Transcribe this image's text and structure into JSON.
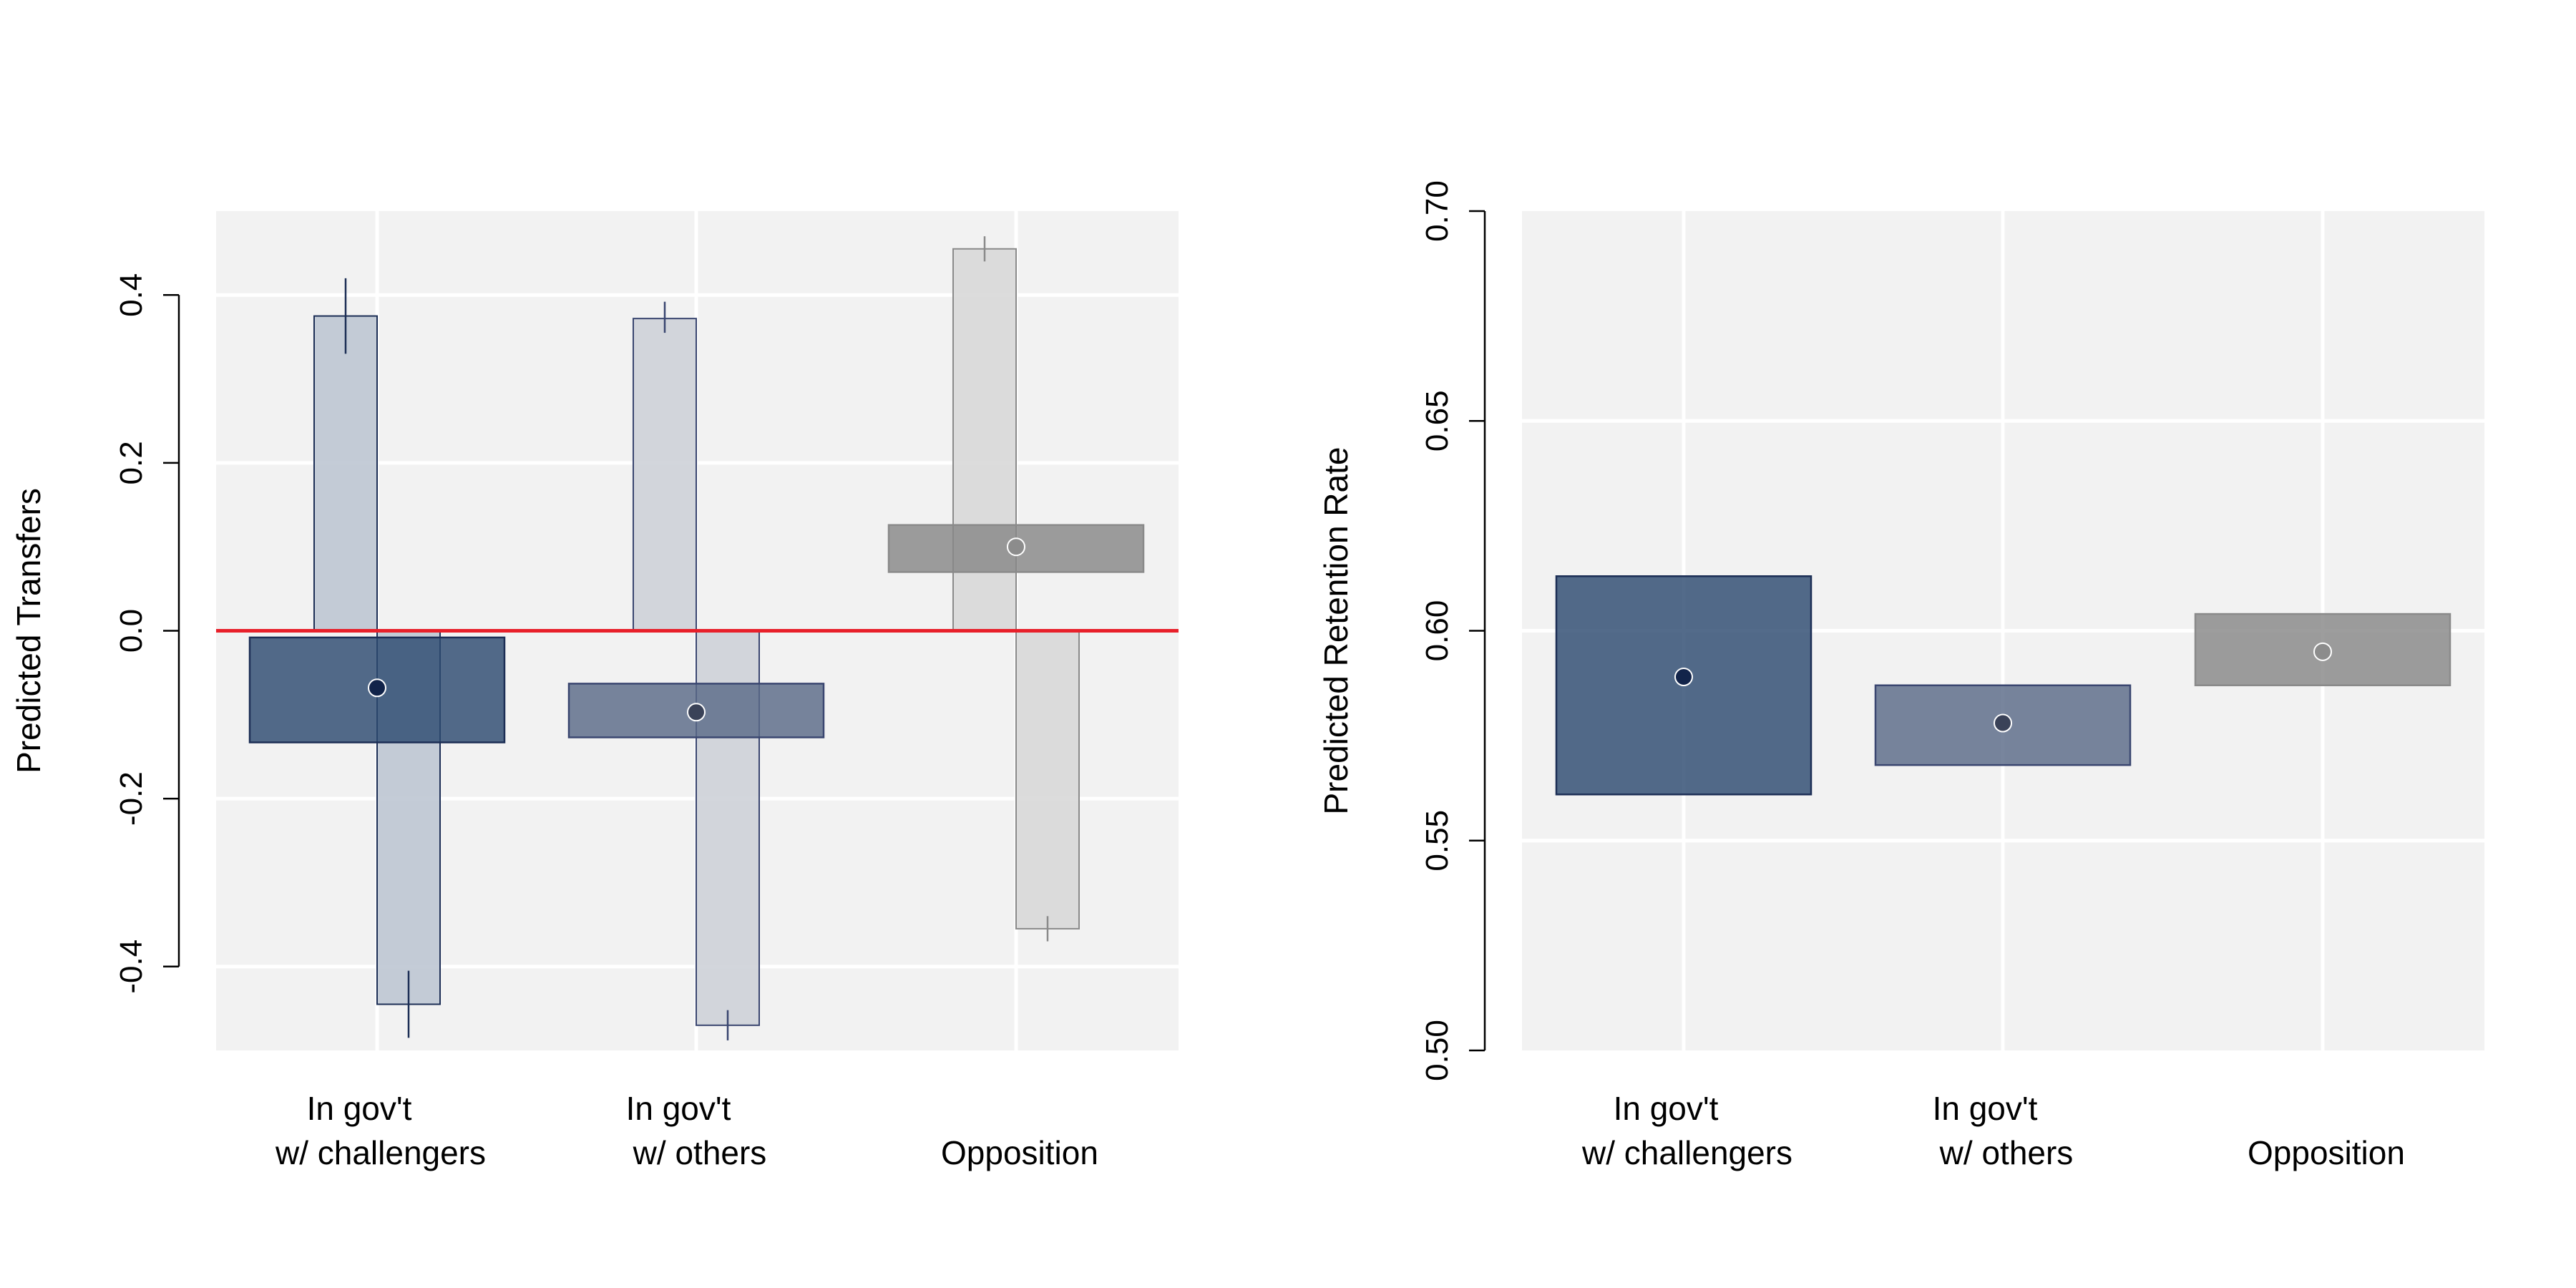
{
  "chart_data": [
    {
      "type": "bar",
      "ylabel": "Predicted Transfers",
      "ylim": [
        -0.5,
        0.5
      ],
      "yticks": [
        -0.4,
        -0.2,
        0.0,
        0.2,
        0.4
      ],
      "ytick_labels": [
        "-0.4",
        "-0.2",
        "0.0",
        "0.2",
        "0.4"
      ],
      "categories": [
        {
          "line1": "In gov't",
          "line2": "w/ challengers"
        },
        {
          "line1": "In gov't",
          "line2": "w/ others"
        },
        {
          "line1": "",
          "line2": "Opposition"
        }
      ],
      "reference_line": {
        "y": 0.0,
        "color": "#e8202a"
      },
      "grid": true,
      "colors": {
        "panel_bg": "#f2f2f2",
        "grid": "#ffffff",
        "dark_box": "#2d4a70",
        "mid_box": "#5a6a88",
        "light_box": "#888888",
        "dark_bar": "#bfc8d4",
        "mid_bar": "#cfd2d9",
        "light_bar": "#d9d9d9",
        "dark_stroke": "#1c2e55",
        "mid_stroke": "#3a4670",
        "light_stroke": "#8a8a8a",
        "dark_point": "#12244a",
        "mid_point": "#3a4258",
        "light_point": "#8c8c8c"
      },
      "bars": [
        {
          "category_index": 0,
          "side": "left",
          "value": 0.375,
          "error_low": 0.33,
          "error_high": 0.42,
          "tone": "dark"
        },
        {
          "category_index": 0,
          "side": "right",
          "value": -0.445,
          "error_low": -0.485,
          "error_high": -0.405,
          "tone": "dark"
        },
        {
          "category_index": 1,
          "side": "left",
          "value": 0.372,
          "error_low": 0.355,
          "error_high": 0.392,
          "tone": "mid"
        },
        {
          "category_index": 1,
          "side": "right",
          "value": -0.47,
          "error_low": -0.488,
          "error_high": -0.452,
          "tone": "mid"
        },
        {
          "category_index": 2,
          "side": "left",
          "value": 0.455,
          "error_low": 0.44,
          "error_high": 0.47,
          "tone": "light"
        },
        {
          "category_index": 2,
          "side": "right",
          "value": -0.355,
          "error_low": -0.37,
          "error_high": -0.34,
          "tone": "light"
        }
      ],
      "intervals": [
        {
          "category_index": 0,
          "estimate": -0.068,
          "low": -0.133,
          "high": -0.008,
          "tone": "dark"
        },
        {
          "category_index": 1,
          "estimate": -0.097,
          "low": -0.127,
          "high": -0.063,
          "tone": "mid"
        },
        {
          "category_index": 2,
          "estimate": 0.1,
          "low": 0.07,
          "high": 0.126,
          "tone": "light"
        }
      ]
    },
    {
      "type": "bar",
      "ylabel": "Predicted Retention Rate",
      "ylim": [
        0.5,
        0.7
      ],
      "yticks": [
        0.5,
        0.55,
        0.6,
        0.65,
        0.7
      ],
      "ytick_labels": [
        "0.50",
        "0.55",
        "0.60",
        "0.65",
        "0.70"
      ],
      "categories": [
        {
          "line1": "In gov't",
          "line2": "w/ challengers"
        },
        {
          "line1": "In gov't",
          "line2": "w/ others"
        },
        {
          "line1": "",
          "line2": "Opposition"
        }
      ],
      "grid": true,
      "intervals": [
        {
          "category_index": 0,
          "estimate": 0.589,
          "low": 0.561,
          "high": 0.613,
          "tone": "dark"
        },
        {
          "category_index": 1,
          "estimate": 0.578,
          "low": 0.568,
          "high": 0.587,
          "tone": "mid"
        },
        {
          "category_index": 2,
          "estimate": 0.595,
          "low": 0.587,
          "high": 0.604,
          "tone": "light"
        }
      ]
    }
  ]
}
